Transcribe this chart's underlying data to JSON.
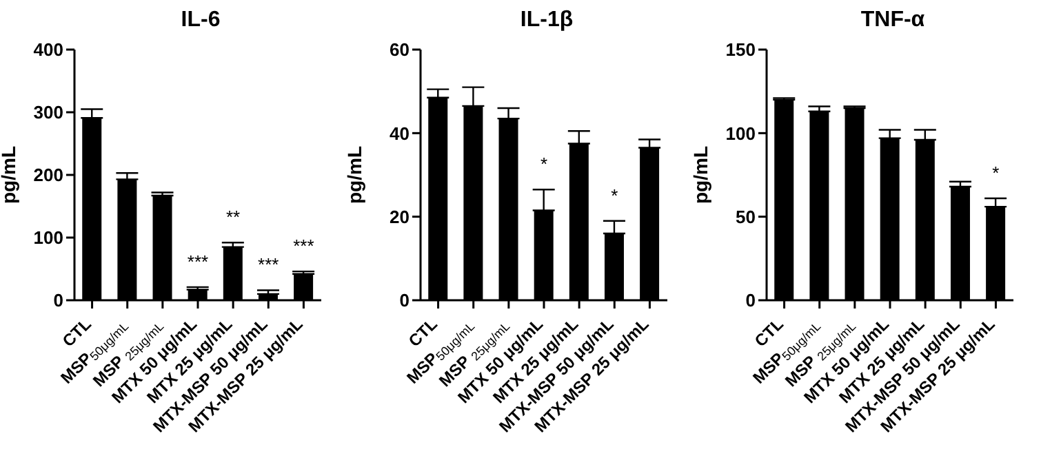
{
  "chart_data": [
    {
      "type": "bar",
      "title": "IL-6",
      "ylabel": "pg/mL",
      "categories": [
        "CTL",
        "MSP$_{50μg/mL}$",
        "MSP $_{25μg/mL}$",
        "MTX 50 μg/mL",
        "MTX 25 μg/mL",
        "MTX-MSP 50 μg/mL",
        "MTX-MSP 25 μg/mL"
      ],
      "values": [
        291,
        193,
        167,
        17,
        85,
        10,
        42
      ],
      "errors": [
        14,
        10,
        5,
        4,
        7,
        6,
        4
      ],
      "color": "#000000",
      "ylim": [
        0,
        400
      ],
      "yticks": [
        0,
        100,
        200,
        300,
        400
      ],
      "annotations": [
        {
          "text": "***",
          "x": "MTX 50 μg/mL",
          "y": 21
        },
        {
          "text": "**",
          "x": "MTX 25 μg/mL",
          "y": 92
        },
        {
          "text": "***",
          "x": "MTX-MSP 50 μg/mL",
          "y": 16
        },
        {
          "text": "***",
          "x": "MTX-MSP 25 μg/mL",
          "y": 46
        }
      ]
    },
    {
      "type": "bar",
      "title": "IL-1β",
      "ylabel": "pg/mL",
      "categories": [
        "CTL",
        "MSP$_{50μg/mL}$",
        "MSP $_{25μg/mL}$",
        "MTX 50 μg/mL",
        "MTX 25 μg/mL",
        "MTX-MSP 50 μg/mL",
        "MTX-MSP 25 μg/mL"
      ],
      "values": [
        48.5,
        46.5,
        43.5,
        21.5,
        37.5,
        16,
        36.5
      ],
      "errors": [
        2,
        4.5,
        2.5,
        5,
        3,
        3,
        2
      ],
      "color": "#000000",
      "ylim": [
        0,
        60
      ],
      "yticks": [
        0,
        20,
        40,
        60
      ],
      "annotations": [
        {
          "text": "*",
          "x": "MTX 50 μg/mL",
          "y": 26.5
        },
        {
          "text": "*",
          "x": "MTX-MSP 50 μg/mL",
          "y": 19
        }
      ]
    },
    {
      "type": "bar",
      "title": "TNF-α",
      "ylabel": "pg/mL",
      "categories": [
        "CTL",
        "MSP$_{50μg/mL}$",
        "MSP $_{25μg/mL}$",
        "MTX 50 μg/mL",
        "MTX 25 μg/mL",
        "MTX-MSP 50 μg/mL",
        "MTX-MSP 25 μg/mL"
      ],
      "values": [
        120,
        113,
        115,
        97,
        96,
        68,
        56
      ],
      "errors": [
        1,
        3,
        1,
        5,
        6,
        3,
        5
      ],
      "color": "#000000",
      "ylim": [
        0,
        150
      ],
      "yticks": [
        0,
        50,
        100,
        150
      ],
      "annotations": [
        {
          "text": "*",
          "x": "MTX-MSP 25 μg/mL",
          "y": 61
        }
      ]
    }
  ]
}
